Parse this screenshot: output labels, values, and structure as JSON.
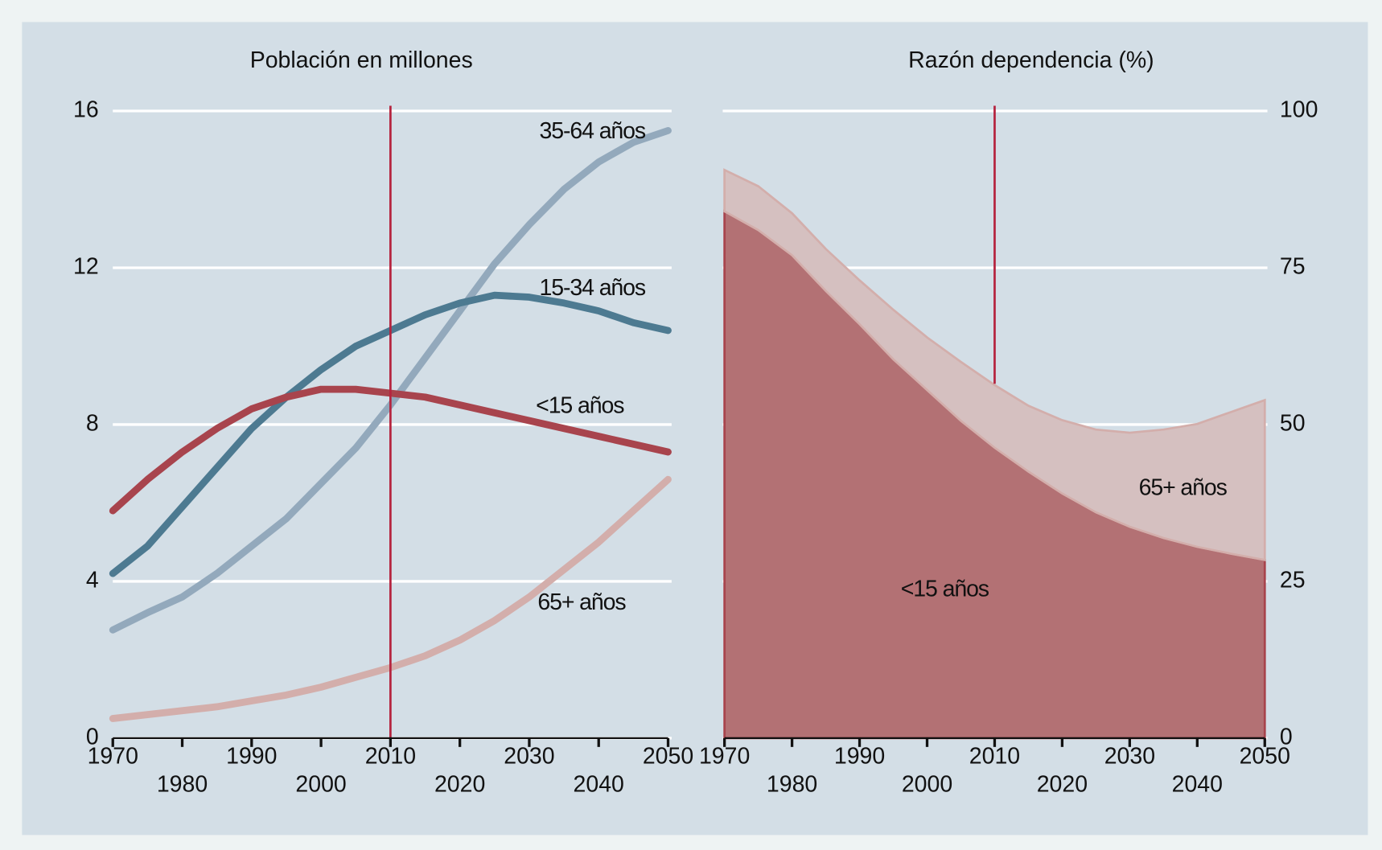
{
  "chart_data": [
    {
      "type": "line",
      "title": "Población en millones",
      "x": [
        1970,
        1975,
        1980,
        1985,
        1990,
        1995,
        2000,
        2005,
        2010,
        2015,
        2020,
        2025,
        2030,
        2035,
        2040,
        2045,
        2050
      ],
      "xlim": [
        1970,
        2050
      ],
      "xticks": [
        1970,
        1980,
        1990,
        2000,
        2010,
        2020,
        2030,
        2040,
        2050
      ],
      "ylim": [
        0,
        16
      ],
      "yticks": [
        0,
        4,
        8,
        12,
        16
      ],
      "y_axis_side": "left",
      "grid": true,
      "vline": 2010,
      "series": [
        {
          "name": "35-64 años",
          "color": "#93a9bc",
          "values": [
            2.76,
            3.2,
            3.6,
            4.2,
            4.9,
            5.6,
            6.5,
            7.4,
            8.5,
            9.7,
            10.9,
            12.1,
            13.1,
            14.0,
            14.7,
            15.2,
            15.5
          ]
        },
        {
          "name": "15-34 años",
          "color": "#4d7a91",
          "values": [
            4.2,
            4.9,
            5.9,
            6.9,
            7.9,
            8.7,
            9.4,
            10.0,
            10.4,
            10.8,
            11.1,
            11.3,
            11.25,
            11.1,
            10.9,
            10.6,
            10.4
          ]
        },
        {
          "name": "<15 años",
          "color": "#a8444d",
          "values": [
            5.8,
            6.6,
            7.3,
            7.9,
            8.4,
            8.7,
            8.9,
            8.9,
            8.8,
            8.7,
            8.5,
            8.3,
            8.1,
            7.9,
            7.7,
            7.5,
            7.3
          ]
        },
        {
          "name": "65+ años",
          "color": "#d3aeab",
          "values": [
            0.5,
            0.6,
            0.7,
            0.8,
            0.95,
            1.1,
            1.3,
            1.55,
            1.8,
            2.1,
            2.5,
            3.0,
            3.6,
            4.3,
            5.0,
            5.8,
            6.6
          ]
        }
      ]
    },
    {
      "type": "stacked_area",
      "title": "Razón dependencia (%)",
      "x": [
        1970,
        1975,
        1980,
        1985,
        1990,
        1995,
        2000,
        2005,
        2010,
        2015,
        2020,
        2025,
        2030,
        2035,
        2040,
        2045,
        2050
      ],
      "xlim": [
        1970,
        2050
      ],
      "xticks": [
        1970,
        1980,
        1990,
        2000,
        2010,
        2020,
        2030,
        2040,
        2050
      ],
      "ylim": [
        0,
        100
      ],
      "yticks": [
        0,
        25,
        50,
        75,
        100
      ],
      "y_axis_side": "right",
      "grid": true,
      "vline": 2010,
      "series": [
        {
          "name": "<15 años",
          "color": "#b37174",
          "values": [
            84,
            81,
            77,
            71.3,
            66,
            60.4,
            55.5,
            50.6,
            46.3,
            42.5,
            39,
            36,
            33.7,
            31.9,
            30.5,
            29.4,
            28.4
          ]
        },
        {
          "name": "65+ años",
          "color": "#d5c0c0",
          "values": [
            6.6,
            7,
            6.7,
            6.7,
            7,
            7.9,
            8.4,
            9.4,
            10,
            10.5,
            11.7,
            13.2,
            15,
            17.3,
            19.6,
            22.6,
            25.5
          ]
        }
      ]
    }
  ]
}
